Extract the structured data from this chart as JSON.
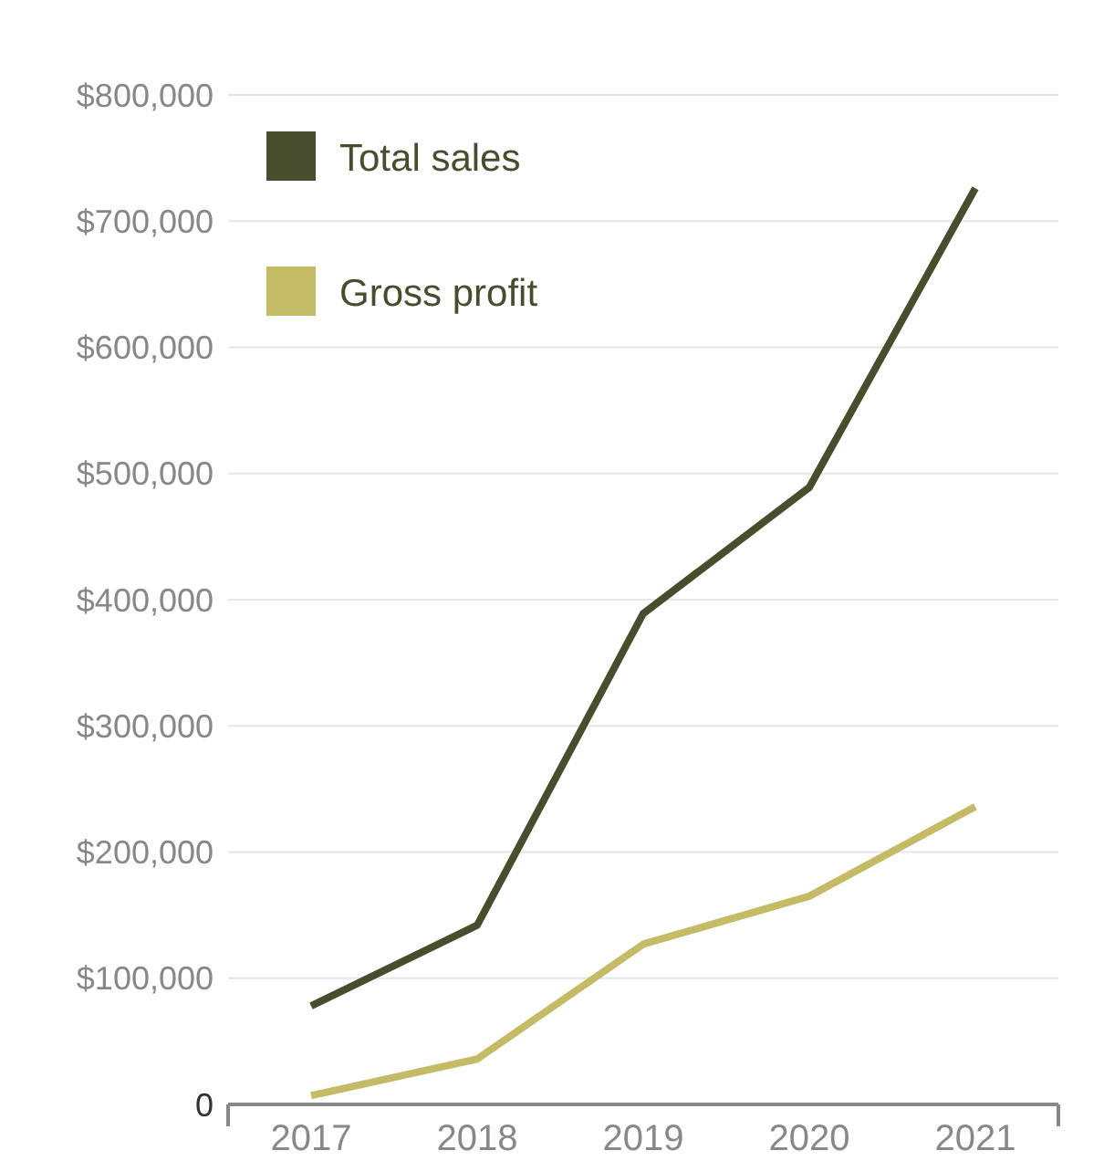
{
  "chart_data": {
    "type": "line",
    "categories": [
      "2017",
      "2018",
      "2019",
      "2020",
      "2021"
    ],
    "series": [
      {
        "name": "Total sales",
        "color": "#474d2d",
        "values": [
          78000,
          142000,
          389000,
          489000,
          726000
        ]
      },
      {
        "name": "Gross profit",
        "color": "#c4bb66",
        "values": [
          7000,
          36000,
          127000,
          165000,
          236000
        ]
      }
    ],
    "ylim": [
      0,
      800000
    ],
    "yticks": [
      {
        "value": 0,
        "label": "0"
      },
      {
        "value": 100000,
        "label": "$100,000"
      },
      {
        "value": 200000,
        "label": "$200,000"
      },
      {
        "value": 300000,
        "label": "$300,000"
      },
      {
        "value": 400000,
        "label": "$400,000"
      },
      {
        "value": 500000,
        "label": "$500,000"
      },
      {
        "value": 600000,
        "label": "$600,000"
      },
      {
        "value": 700000,
        "label": "$700,000"
      },
      {
        "value": 800000,
        "label": "$800,000"
      }
    ],
    "grid": "y",
    "legend": "top left",
    "marker": "none",
    "line_style": "solid"
  }
}
